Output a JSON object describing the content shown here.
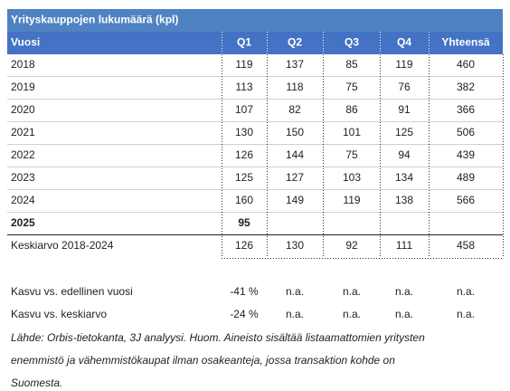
{
  "title": "Yrityskauppojen lukumäärä (kpl)",
  "header": [
    "Vuosi",
    "Q1",
    "Q2",
    "Q3",
    "Q4",
    "Yhteensä"
  ],
  "rows": [
    [
      "2018",
      "119",
      "137",
      "85",
      "119",
      "460"
    ],
    [
      "2019",
      "113",
      "118",
      "75",
      "76",
      "382"
    ],
    [
      "2020",
      "107",
      "82",
      "86",
      "91",
      "366"
    ],
    [
      "2021",
      "130",
      "150",
      "101",
      "125",
      "506"
    ],
    [
      "2022",
      "126",
      "144",
      "75",
      "94",
      "439"
    ],
    [
      "2023",
      "125",
      "127",
      "103",
      "134",
      "489"
    ],
    [
      "2024",
      "160",
      "149",
      "119",
      "138",
      "566"
    ],
    [
      "2025",
      "95"
    ]
  ],
  "average": [
    "Keskiarvo 2018-2024",
    "126",
    "130",
    "92",
    "111",
    "458"
  ],
  "growth": [
    [
      "Kasvu vs. edellinen vuosi",
      "-41 %",
      "n.a.",
      "n.a.",
      "n.a.",
      "n.a."
    ],
    [
      "Kasvu vs. keskiarvo",
      "-24 %",
      "n.a.",
      "n.a.",
      "n.a.",
      "n.a."
    ]
  ],
  "footnote": [
    "Lähde: Orbis-tietokanta, 3J analyysi. Huom. Aineisto sisältää listaamattomien yritysten",
    "enemmistö ja vähemmistökaupat ilman osakeanteja, jossa transaktion kohde on",
    "Suomesta."
  ]
}
